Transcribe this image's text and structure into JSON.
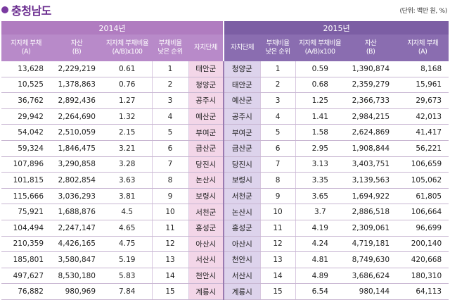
{
  "title": "충청남도",
  "unit_note": "(단위: 백만 원, %)",
  "year_2014": "2014년",
  "year_2015": "2015년",
  "headers_2014": [
    "지자체 부채\n(A)",
    "자산\n(B)",
    "지자체 부채비율\n(A/B)x100",
    "부채비율\n낮은 순위",
    "자치단체"
  ],
  "headers_2015": [
    "자치단체",
    "부채비율\n낮은 순위",
    "지자체 부채비율\n(A/B)x100",
    "자산\n(B)",
    "지자체 부채\n(A)"
  ],
  "rows": [
    {
      "d14": "13,628",
      "a14": "2,229,219",
      "r14": "0.61",
      "k14": "1",
      "n14": "태안군",
      "n15": "청양군",
      "k15": "1",
      "r15": "0.59",
      "a15": "1,390,874",
      "d15": "8,168"
    },
    {
      "d14": "10,525",
      "a14": "1,378,863",
      "r14": "0.76",
      "k14": "2",
      "n14": "청양군",
      "n15": "태안군",
      "k15": "2",
      "r15": "0.68",
      "a15": "2,359,279",
      "d15": "15,961"
    },
    {
      "d14": "36,762",
      "a14": "2,892,436",
      "r14": "1.27",
      "k14": "3",
      "n14": "공주시",
      "n15": "예산군",
      "k15": "3",
      "r15": "1.25",
      "a15": "2,366,733",
      "d15": "29,673"
    },
    {
      "d14": "29,942",
      "a14": "2,264,690",
      "r14": "1.32",
      "k14": "4",
      "n14": "예산군",
      "n15": "공주시",
      "k15": "4",
      "r15": "1.41",
      "a15": "2,984,215",
      "d15": "42,013"
    },
    {
      "d14": "54,042",
      "a14": "2,510,059",
      "r14": "2.15",
      "k14": "5",
      "n14": "부여군",
      "n15": "부여군",
      "k15": "5",
      "r15": "1.58",
      "a15": "2,624,869",
      "d15": "41,417"
    },
    {
      "d14": "59,324",
      "a14": "1,846,475",
      "r14": "3.21",
      "k14": "6",
      "n14": "금산군",
      "n15": "금산군",
      "k15": "6",
      "r15": "2.95",
      "a15": "1,908,844",
      "d15": "56,221"
    },
    {
      "d14": "107,896",
      "a14": "3,290,858",
      "r14": "3.28",
      "k14": "7",
      "n14": "당진시",
      "n15": "당진시",
      "k15": "7",
      "r15": "3.13",
      "a15": "3,403,751",
      "d15": "106,659"
    },
    {
      "d14": "101,815",
      "a14": "2,802,854",
      "r14": "3.63",
      "k14": "8",
      "n14": "논산시",
      "n15": "보령시",
      "k15": "8",
      "r15": "3.35",
      "a15": "3,139,563",
      "d15": "105,062"
    },
    {
      "d14": "115,666",
      "a14": "3,036,293",
      "r14": "3.81",
      "k14": "9",
      "n14": "보령시",
      "n15": "서천군",
      "k15": "9",
      "r15": "3.65",
      "a15": "1,694,922",
      "d15": "61,805"
    },
    {
      "d14": "75,921",
      "a14": "1,688,876",
      "r14": "4.5",
      "k14": "10",
      "n14": "서천군",
      "n15": "논산시",
      "k15": "10",
      "r15": "3.7",
      "a15": "2,886,518",
      "d15": "106,664"
    },
    {
      "d14": "104,494",
      "a14": "2,247,147",
      "r14": "4.65",
      "k14": "11",
      "n14": "홍성군",
      "n15": "홍성군",
      "k15": "11",
      "r15": "4.19",
      "a15": "2,309,061",
      "d15": "96,699"
    },
    {
      "d14": "210,359",
      "a14": "4,426,165",
      "r14": "4.75",
      "k14": "12",
      "n14": "아산시",
      "n15": "아산시",
      "k15": "12",
      "r15": "4.24",
      "a15": "4,719,181",
      "d15": "200,140"
    },
    {
      "d14": "185,801",
      "a14": "3,580,847",
      "r14": "5.19",
      "k14": "13",
      "n14": "서산시",
      "n15": "천안시",
      "k15": "13",
      "r15": "4.81",
      "a15": "8,749,630",
      "d15": "420,668"
    },
    {
      "d14": "497,627",
      "a14": "8,530,180",
      "r14": "5.83",
      "k14": "14",
      "n14": "천안시",
      "n15": "서산시",
      "k15": "14",
      "r15": "4.89",
      "a15": "3,686,624",
      "d15": "180,310"
    },
    {
      "d14": "76,882",
      "a14": "980,969",
      "r14": "7.84",
      "k14": "15",
      "n14": "계룡시",
      "n15": "계룡시",
      "k15": "15",
      "r15": "6.54",
      "a15": "980,144",
      "d15": "64,113"
    }
  ]
}
